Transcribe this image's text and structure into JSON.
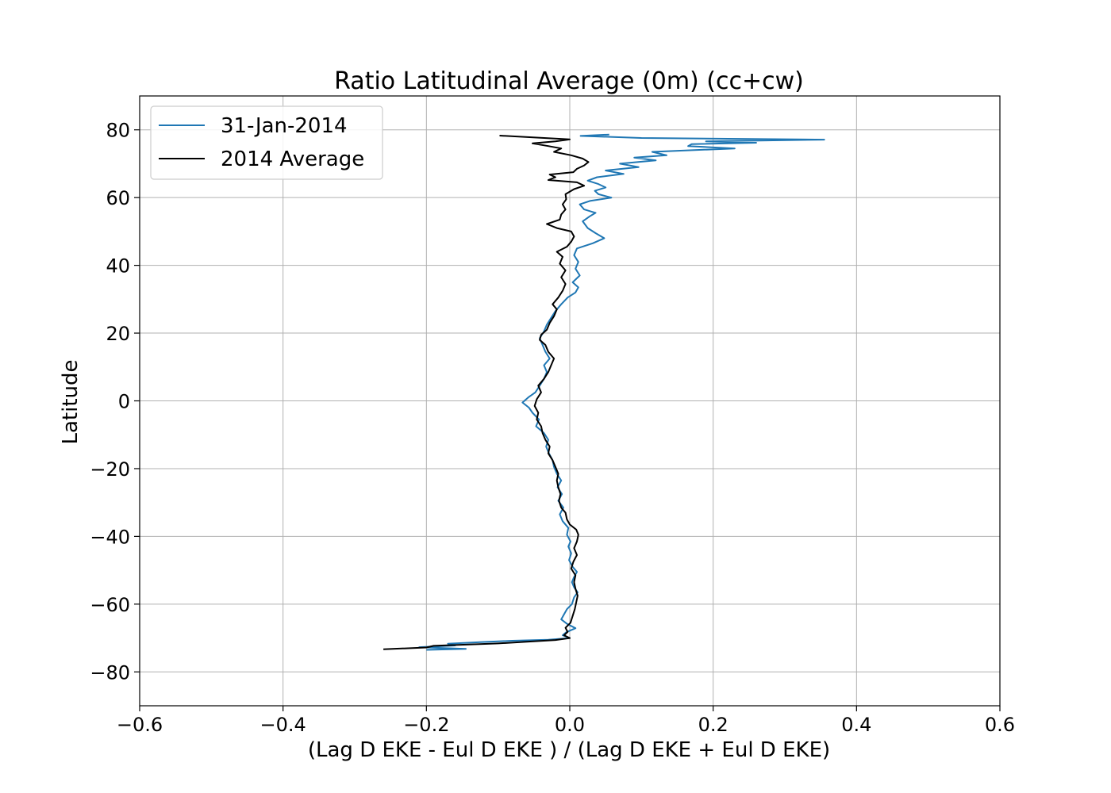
{
  "chart_data": {
    "type": "line",
    "title": "Ratio Latitudinal Average (0m) (cc+cw)",
    "xlabel": "(Lag D EKE - Eul D EKE ) / (Lag D EKE + Eul D EKE)",
    "ylabel": "Latitude",
    "xlim": [
      -0.6,
      0.6
    ],
    "ylim": [
      -90,
      90
    ],
    "xticks": [
      -0.6,
      -0.4,
      -0.2,
      0.0,
      0.2,
      0.4,
      0.6
    ],
    "xtick_labels": [
      "−0.6",
      "−0.4",
      "−0.2",
      "0.0",
      "0.2",
      "0.4",
      "0.6"
    ],
    "yticks": [
      80,
      60,
      40,
      20,
      0,
      -20,
      -40,
      -60,
      -80
    ],
    "ytick_labels": [
      "80",
      "60",
      "40",
      "20",
      "0",
      "−20",
      "−40",
      "−60",
      "−80"
    ],
    "grid": true,
    "legend_position": "top-left",
    "series": [
      {
        "name": "31-Jan-2014",
        "color": "#1f77b4",
        "points": [
          [
            -0.2,
            -73.5
          ],
          [
            -0.145,
            -73.2
          ],
          [
            -0.21,
            -72.7
          ],
          [
            -0.16,
            -72.2
          ],
          [
            -0.17,
            -71.7
          ],
          [
            -0.125,
            -71.2
          ],
          [
            -0.08,
            -70.8
          ],
          [
            -0.03,
            -70.5
          ],
          [
            0.0,
            -70.0
          ],
          [
            -0.01,
            -69.2
          ],
          [
            -0.005,
            -68.3
          ],
          [
            0.008,
            -67.1
          ],
          [
            -0.004,
            -65.8
          ],
          [
            -0.012,
            -64.5
          ],
          [
            -0.008,
            -63.0
          ],
          [
            -0.004,
            -61.5
          ],
          [
            0.003,
            -60.0
          ],
          [
            0.006,
            -58.0
          ],
          [
            0.011,
            -56.5
          ],
          [
            0.006,
            -55.0
          ],
          [
            0.003,
            -53.5
          ],
          [
            0.006,
            -52.0
          ],
          [
            0.01,
            -50.5
          ],
          [
            0.004,
            -49.0
          ],
          [
            -0.001,
            -47.0
          ],
          [
            0.002,
            -45.0
          ],
          [
            -0.002,
            -43.0
          ],
          [
            0.001,
            -41.5
          ],
          [
            -0.004,
            -39.5
          ],
          [
            -0.002,
            -37.5
          ],
          [
            -0.01,
            -35.5
          ],
          [
            -0.014,
            -33.5
          ],
          [
            -0.009,
            -31.5
          ],
          [
            -0.016,
            -29.5
          ],
          [
            -0.011,
            -27.5
          ],
          [
            -0.017,
            -25.5
          ],
          [
            -0.012,
            -23.5
          ],
          [
            -0.018,
            -21.5
          ],
          [
            -0.022,
            -19.5
          ],
          [
            -0.024,
            -17.5
          ],
          [
            -0.029,
            -15.5
          ],
          [
            -0.033,
            -13.5
          ],
          [
            -0.03,
            -11.5
          ],
          [
            -0.036,
            -9.5
          ],
          [
            -0.047,
            -7.5
          ],
          [
            -0.043,
            -5.5
          ],
          [
            -0.052,
            -3.5
          ],
          [
            -0.057,
            -2.0
          ],
          [
            -0.066,
            -0.5
          ],
          [
            -0.058,
            1.0
          ],
          [
            -0.048,
            2.5
          ],
          [
            -0.042,
            4.5
          ],
          [
            -0.036,
            6.5
          ],
          [
            -0.032,
            8.5
          ],
          [
            -0.036,
            10.5
          ],
          [
            -0.028,
            12.5
          ],
          [
            -0.034,
            14.5
          ],
          [
            -0.038,
            16.5
          ],
          [
            -0.042,
            18.5
          ],
          [
            -0.036,
            20.5
          ],
          [
            -0.032,
            22.5
          ],
          [
            -0.026,
            24.5
          ],
          [
            -0.02,
            26.5
          ],
          [
            -0.012,
            28.5
          ],
          [
            -0.003,
            30.5
          ],
          [
            0.008,
            32.0
          ],
          [
            0.012,
            33.5
          ],
          [
            0.004,
            35.0
          ],
          [
            0.014,
            37.0
          ],
          [
            0.008,
            39.0
          ],
          [
            0.012,
            41.0
          ],
          [
            0.006,
            43.0
          ],
          [
            0.01,
            45.0
          ],
          [
            0.032,
            46.5
          ],
          [
            0.048,
            48.0
          ],
          [
            0.036,
            49.5
          ],
          [
            0.025,
            51.0
          ],
          [
            0.018,
            53.0
          ],
          [
            0.028,
            54.5
          ],
          [
            0.036,
            55.5
          ],
          [
            0.02,
            56.5
          ],
          [
            0.014,
            58.0
          ],
          [
            0.028,
            59.0
          ],
          [
            0.058,
            60.0
          ],
          [
            0.04,
            61.0
          ],
          [
            0.035,
            62.0
          ],
          [
            0.05,
            63.0
          ],
          [
            0.04,
            64.0
          ],
          [
            0.025,
            65.0
          ],
          [
            0.038,
            66.0
          ],
          [
            0.075,
            67.0
          ],
          [
            0.05,
            68.0
          ],
          [
            0.096,
            69.0
          ],
          [
            0.07,
            70.0
          ],
          [
            0.12,
            71.0
          ],
          [
            0.09,
            71.8
          ],
          [
            0.135,
            72.5
          ],
          [
            0.115,
            73.5
          ],
          [
            0.23,
            74.5
          ],
          [
            0.165,
            75.2
          ],
          [
            0.17,
            75.8
          ],
          [
            0.26,
            76.2
          ],
          [
            0.19,
            76.6
          ],
          [
            0.355,
            77.1
          ],
          [
            0.1,
            77.6
          ],
          [
            0.015,
            78.2
          ],
          [
            0.055,
            78.6
          ]
        ]
      },
      {
        "name": "2014 Average",
        "color": "#000000",
        "points": [
          [
            -0.26,
            -73.3
          ],
          [
            -0.2,
            -72.8
          ],
          [
            -0.19,
            -72.3
          ],
          [
            -0.1,
            -71.6
          ],
          [
            -0.06,
            -71.1
          ],
          [
            -0.02,
            -70.6
          ],
          [
            0.0,
            -70.0
          ],
          [
            -0.008,
            -69.2
          ],
          [
            -0.003,
            -68.2
          ],
          [
            -0.006,
            -67.0
          ],
          [
            0.001,
            -65.5
          ],
          [
            0.004,
            -63.5
          ],
          [
            0.007,
            -61.5
          ],
          [
            0.009,
            -59.5
          ],
          [
            0.011,
            -57.5
          ],
          [
            0.008,
            -55.5
          ],
          [
            0.006,
            -53.5
          ],
          [
            0.008,
            -51.5
          ],
          [
            0.002,
            -49.5
          ],
          [
            0.005,
            -47.5
          ],
          [
            0.01,
            -45.5
          ],
          [
            0.006,
            -43.5
          ],
          [
            0.01,
            -41.5
          ],
          [
            0.012,
            -39.5
          ],
          [
            0.009,
            -38.0
          ],
          [
            0.0,
            -36.5
          ],
          [
            -0.004,
            -35.0
          ],
          [
            -0.006,
            -33.0
          ],
          [
            -0.012,
            -31.5
          ],
          [
            -0.015,
            -29.5
          ],
          [
            -0.013,
            -27.5
          ],
          [
            -0.016,
            -25.5
          ],
          [
            -0.018,
            -23.5
          ],
          [
            -0.016,
            -21.5
          ],
          [
            -0.02,
            -19.5
          ],
          [
            -0.024,
            -17.5
          ],
          [
            -0.03,
            -15.5
          ],
          [
            -0.028,
            -13.5
          ],
          [
            -0.034,
            -11.5
          ],
          [
            -0.038,
            -9.5
          ],
          [
            -0.04,
            -7.5
          ],
          [
            -0.046,
            -5.5
          ],
          [
            -0.044,
            -3.5
          ],
          [
            -0.049,
            -1.5
          ],
          [
            -0.046,
            0.5
          ],
          [
            -0.04,
            2.5
          ],
          [
            -0.044,
            4.5
          ],
          [
            -0.036,
            6.5
          ],
          [
            -0.03,
            8.5
          ],
          [
            -0.026,
            10.5
          ],
          [
            -0.022,
            12.5
          ],
          [
            -0.03,
            14.5
          ],
          [
            -0.034,
            16.5
          ],
          [
            -0.042,
            18.0
          ],
          [
            -0.04,
            19.5
          ],
          [
            -0.032,
            21.0
          ],
          [
            -0.028,
            23.0
          ],
          [
            -0.022,
            25.0
          ],
          [
            -0.018,
            27.0
          ],
          [
            -0.024,
            28.5
          ],
          [
            -0.016,
            30.5
          ],
          [
            -0.01,
            32.5
          ],
          [
            -0.006,
            34.5
          ],
          [
            -0.012,
            36.5
          ],
          [
            -0.006,
            38.5
          ],
          [
            -0.014,
            40.5
          ],
          [
            -0.01,
            42.5
          ],
          [
            -0.018,
            44.0
          ],
          [
            -0.004,
            45.5
          ],
          [
            0.002,
            47.0
          ],
          [
            0.006,
            48.5
          ],
          [
            0.002,
            50.0
          ],
          [
            -0.018,
            51.0
          ],
          [
            -0.032,
            52.2
          ],
          [
            -0.014,
            53.5
          ],
          [
            -0.012,
            55.0
          ],
          [
            -0.006,
            56.5
          ],
          [
            -0.01,
            58.0
          ],
          [
            -0.005,
            59.5
          ],
          [
            -0.006,
            61.0
          ],
          [
            0.006,
            62.5
          ],
          [
            0.02,
            63.5
          ],
          [
            0.01,
            64.5
          ],
          [
            -0.03,
            65.2
          ],
          [
            -0.02,
            66.0
          ],
          [
            -0.028,
            66.8
          ],
          [
            0.005,
            67.5
          ],
          [
            0.01,
            68.5
          ],
          [
            0.02,
            69.5
          ],
          [
            0.026,
            70.5
          ],
          [
            0.018,
            71.5
          ],
          [
            0.002,
            72.5
          ],
          [
            -0.022,
            73.5
          ],
          [
            -0.012,
            74.5
          ],
          [
            -0.03,
            75.2
          ],
          [
            -0.052,
            76.0
          ],
          [
            -0.02,
            76.6
          ],
          [
            0.0,
            77.2
          ],
          [
            -0.098,
            78.3
          ]
        ]
      }
    ]
  }
}
